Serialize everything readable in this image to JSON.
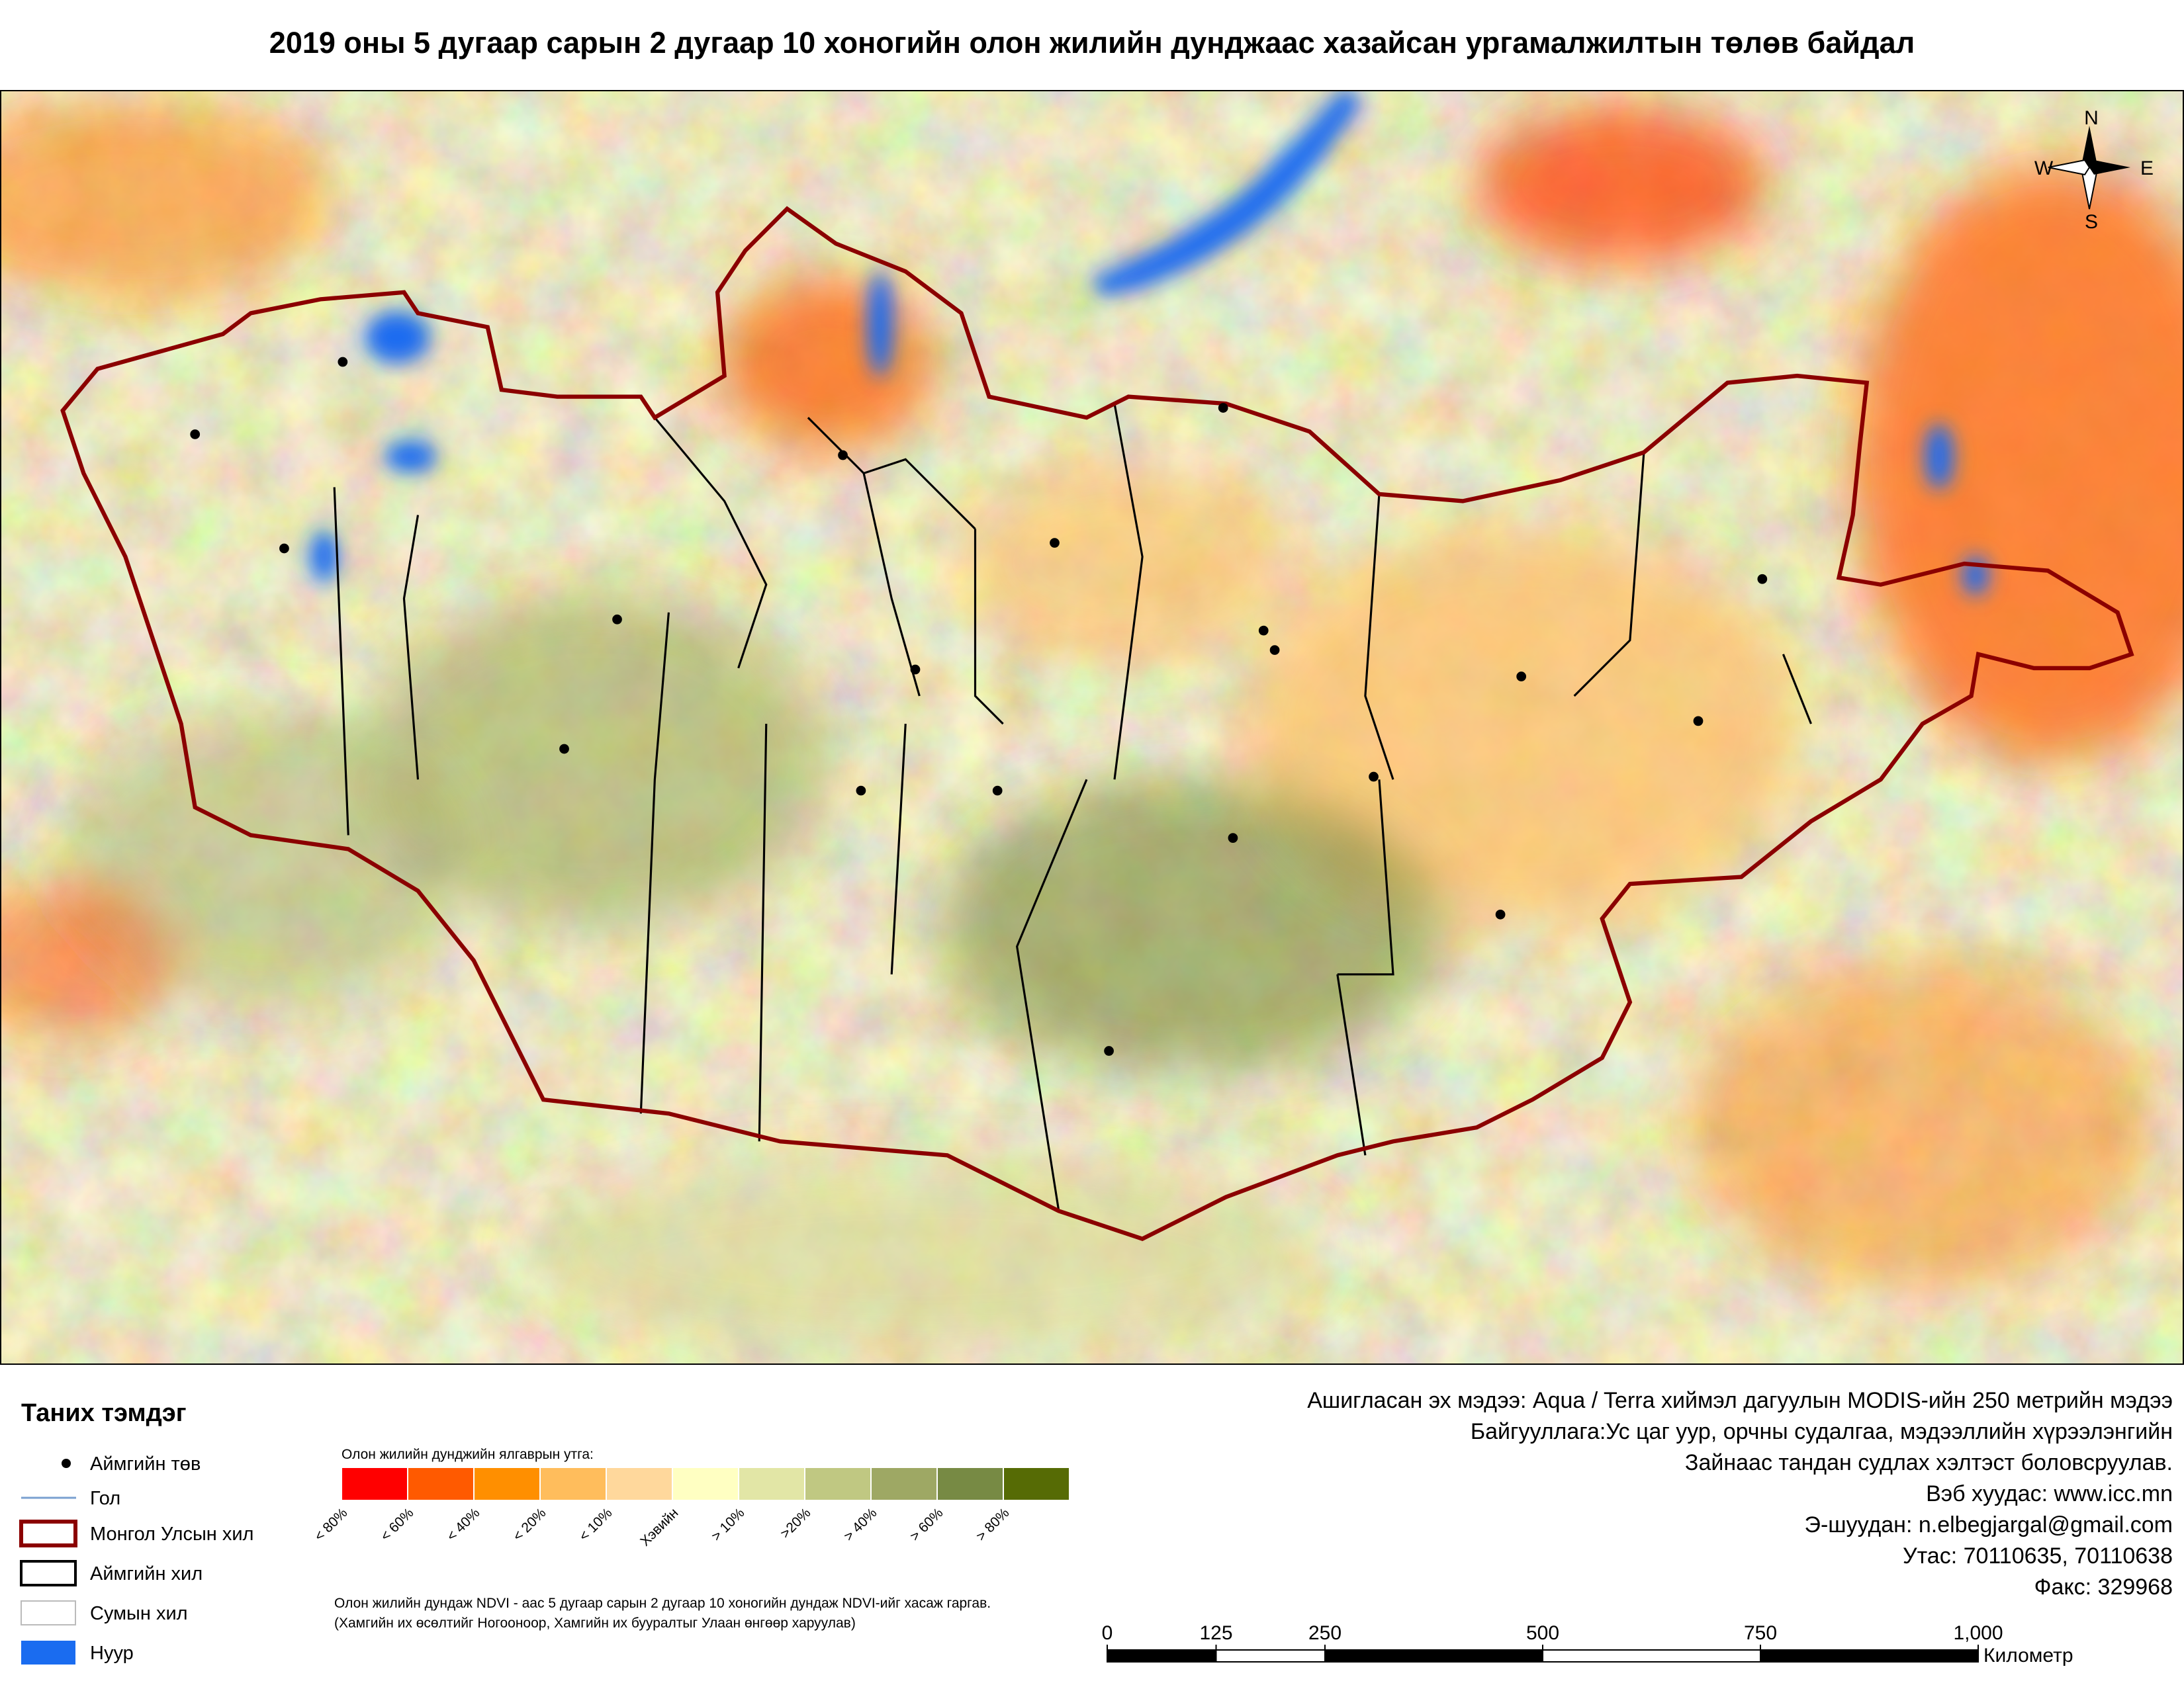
{
  "title": "2019 оны 5 дугаар сарын 2 дугаар 10 хоногийн олон жилийн дунджаас хазайсан ургамалжилтын төлөв байдал",
  "compass": {
    "n": "N",
    "s": "S",
    "e": "E",
    "w": "W"
  },
  "legend": {
    "title": "Таних тэмдэг",
    "items": [
      "Аймгийн төв",
      "Гол",
      "Монгол Улсын хил",
      "Аймгийн хил",
      "Сумын хил",
      "Нуур"
    ]
  },
  "color_scale": {
    "title": "Олон жилийн дунджийн ялгаврын утга:",
    "classes": [
      {
        "label": "< 80%",
        "color": "#ff0000"
      },
      {
        "label": "< 60%",
        "color": "#ff5a00"
      },
      {
        "label": "< 40%",
        "color": "#ff8f00"
      },
      {
        "label": "< 20%",
        "color": "#ffbd5c"
      },
      {
        "label": "< 10%",
        "color": "#ffd89c"
      },
      {
        "label": "Хэвийн",
        "color": "#ffffc2"
      },
      {
        "label": "> 10%",
        "color": "#e2e6a6"
      },
      {
        "label": ">20%",
        "color": "#c0c882"
      },
      {
        "label": "> 40%",
        "color": "#9ea864"
      },
      {
        "label": "> 60%",
        "color": "#778a44"
      },
      {
        "label": "> 80%",
        "color": "#566b05"
      }
    ]
  },
  "note": [
    "Олон жилийн дундаж NDVI - аас 5 дугаар сарын 2 дугаар 10 хоногийн дундаж NDVI-ийг хасаж гаргав.",
    "(Хамгийн их өсөлтийг Ногооноор,  Хамгийн их бууралтыг Улаан өнгөөр харуулав)"
  ],
  "credits": [
    "Ашигласан эх мэдээ: Aqua / Terra хиймэл дагуулын MODIS-ийн 250 метрийн мэдээ",
    "Байгууллага:Ус цаг уур, орчны судалгаа, мэдээллийн хүрээлэнгийн",
    "Зайнаас тандан судлах хэлтэст боловсруулав.",
    "Вэб хуудас: www.icc.mn",
    "Э-шуудан: n.elbegjargal@gmail.com",
    "Утас: 70110635, 70110638",
    "Факс: 329968"
  ],
  "scale_bar": {
    "ticks": [
      0,
      125,
      250,
      500,
      750,
      {
        "value": 1000,
        "label": "1,000"
      }
    ],
    "unit": "Километр"
  }
}
